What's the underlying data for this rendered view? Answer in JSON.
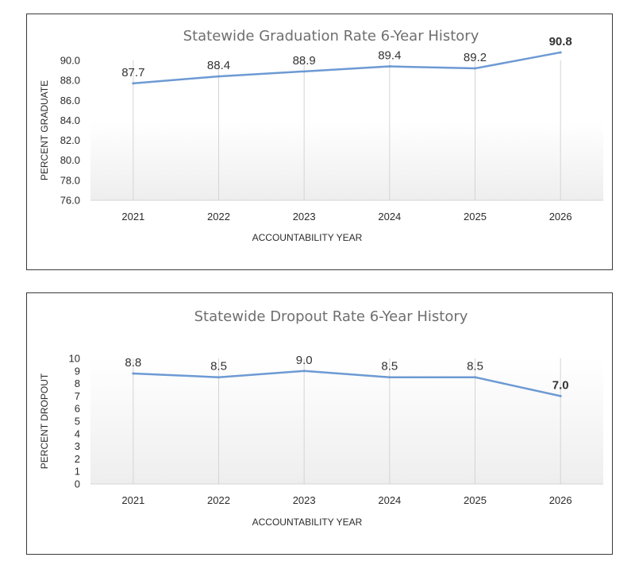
{
  "chart_data": [
    {
      "type": "line",
      "title": "Statewide Graduation Rate 6-Year History",
      "xlabel": "ACCOUNTABILITY YEAR",
      "ylabel": "PERCENT GRADUATE",
      "categories": [
        "2021",
        "2022",
        "2023",
        "2024",
        "2025",
        "2026"
      ],
      "series": [
        {
          "values": [
            87.7,
            88.4,
            88.9,
            89.4,
            89.2,
            90.8
          ],
          "color": "#6d9ad3"
        }
      ],
      "ylim": [
        76,
        90
      ],
      "yticks": [
        "90.0",
        "88.0",
        "86.0",
        "84.0",
        "82.0",
        "80.0",
        "78.0",
        "76.0"
      ],
      "data_labels": [
        "87.7",
        "88.4",
        "88.9",
        "89.4",
        "89.2",
        "90.8"
      ],
      "emphasized_label": "90.8",
      "grid": "vertical",
      "legend": "none"
    },
    {
      "type": "line",
      "title": "Statewide Dropout Rate 6-Year History",
      "xlabel": "ACCOUNTABILITY YEAR",
      "ylabel": "PERCENT DROPOUT",
      "categories": [
        "2021",
        "2022",
        "2023",
        "2024",
        "2025",
        "2026"
      ],
      "series": [
        {
          "values": [
            8.8,
            8.5,
            9.0,
            8.5,
            8.5,
            7.0
          ],
          "color": "#6d9ad3"
        }
      ],
      "ylim": [
        0,
        10
      ],
      "yticks": [
        "10",
        "9",
        "8",
        "7",
        "6",
        "5",
        "4",
        "3",
        "2",
        "1",
        "0"
      ],
      "data_labels": [
        "8.8",
        "8.5",
        "9.0",
        "8.5",
        "8.5",
        "7.0"
      ],
      "emphasized_label": "7.0",
      "grid": "vertical",
      "legend": "none"
    }
  ]
}
